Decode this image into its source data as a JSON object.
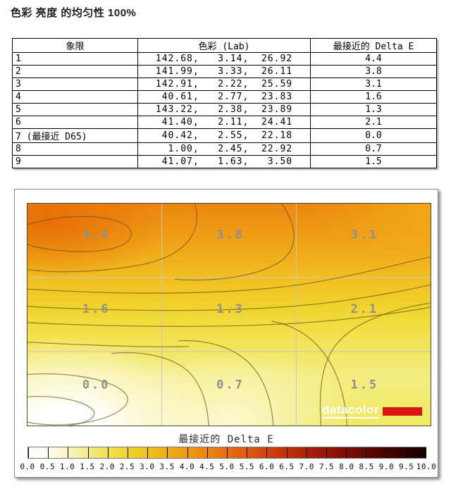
{
  "page": {
    "title": "色彩 亮度 的均匀性 100%"
  },
  "table": {
    "headers": [
      "象限",
      "色彩 (Lab)",
      "最接近的 Delta E"
    ],
    "rows": [
      {
        "quadrant": "1",
        "lab": "142.68,   3.14,  26.92",
        "delta_e": "4.4"
      },
      {
        "quadrant": "2",
        "lab": "141.99,   3.33,  26.11",
        "delta_e": "3.8"
      },
      {
        "quadrant": "3",
        "lab": "142.91,   2.22,  25.59",
        "delta_e": "3.1"
      },
      {
        "quadrant": "4",
        "lab": " 40.61,   2.77,  23.83",
        "delta_e": "1.6"
      },
      {
        "quadrant": "5",
        "lab": "143.22,   2.38,  23.89",
        "delta_e": "1.3"
      },
      {
        "quadrant": "6",
        "lab": " 41.40,   2.11,  24.41",
        "delta_e": "2.1"
      },
      {
        "quadrant": "7 (最接近 D65)",
        "lab": " 40.42,   2.55,  22.18",
        "delta_e": "0.0"
      },
      {
        "quadrant": "8",
        "lab": "  1.00,   2.45,  22.92",
        "delta_e": "0.7"
      },
      {
        "quadrant": "9",
        "lab": " 41.07,   1.63,   3.50",
        "delta_e": "1.5"
      }
    ]
  },
  "chart_data": {
    "type": "heatmap",
    "title": "最接近的 Delta E",
    "grid_rows": 3,
    "grid_cols": 3,
    "grid": [
      [
        "4.4",
        "3.8",
        "3.1"
      ],
      [
        "1.6",
        "1.3",
        "2.1"
      ],
      [
        "0.0",
        "0.7",
        "1.5"
      ]
    ],
    "colorbar": {
      "label": "最接近的 Delta E",
      "min": 0.0,
      "max": 10.0,
      "tick_step": 0.5,
      "tick_labels": [
        "0.0",
        "0.5",
        "1.0",
        "1.5",
        "2.0",
        "2.5",
        "3.0",
        "3.5",
        "4.0",
        "4.5",
        "5.0",
        "5.5",
        "6.0",
        "6.5",
        "7.0",
        "7.5",
        "8.0",
        "8.5",
        "9.0",
        "9.5",
        "10.0"
      ],
      "colors": [
        "#FFFFFF",
        "#FFFDEE",
        "#F9F4C0",
        "#F4EC86",
        "#F1E14E",
        "#EFD32F",
        "#EFC120",
        "#EFAE16",
        "#EE9A12",
        "#EC8510",
        "#E76F0F",
        "#DE590E",
        "#D0440C",
        "#BE310A",
        "#AA2208",
        "#941607",
        "#7C0D05",
        "#630703",
        "#490302",
        "#2F0101",
        "#140000"
      ]
    },
    "brand": {
      "logo_text": "datacolor",
      "logo_color": "#ffffff",
      "bar_color": "#DB1414"
    },
    "high_is_top_left": true,
    "legend_position": "bottom"
  }
}
